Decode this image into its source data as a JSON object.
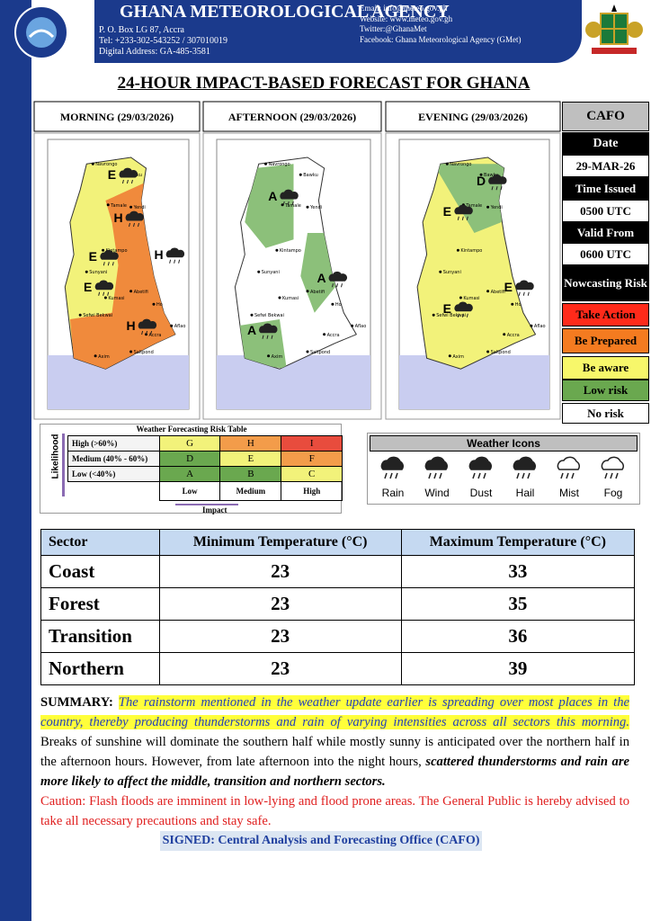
{
  "header": {
    "agency": "GHANA METEOROLOGICAL AGENCY",
    "address": [
      "P. O. Box  LG 87, Accra",
      "Tel: +233-302-543252 / 307010019",
      "Digital Address: GA-485-3581"
    ],
    "contact": [
      "Email: info@meteo.gov.gh",
      "Website: www.meteo.gov.gh",
      "Twitter:@GhanaMet",
      "Facebook: Ghana Meteorological Agency (GMet)"
    ]
  },
  "title": "24-HOUR IMPACT-BASED FORECAST FOR GHANA",
  "map_places": [
    "Bawku",
    "Navrongo",
    "Tamale",
    "Yendi",
    "Kintampo",
    "Sunyani",
    "Kumasi",
    "Abetifi",
    "Ho",
    "Accra",
    "Saltpond",
    "Axim",
    "Sefwi Bekwai",
    "Aflao"
  ],
  "panels": [
    {
      "heading": "MORNING (29/03/2026)",
      "zones": [
        "E",
        "H",
        "H",
        "E",
        "E",
        "H"
      ]
    },
    {
      "heading": "AFTERNOON (29/03/2026)",
      "zones": [
        "A",
        "A",
        "A"
      ]
    },
    {
      "heading": "EVENING (29/03/2026)",
      "zones": [
        "D",
        "E",
        "E",
        "E"
      ]
    }
  ],
  "cafo": {
    "title": "CAFO",
    "rows": [
      "Date",
      "29-MAR-26",
      "Time Issued",
      "0500 UTC",
      "Valid From",
      "0600 UTC",
      "Nowcasting Risk"
    ],
    "legend": [
      "Take Action",
      "Be Prepared",
      "Be aware",
      "Low risk",
      "No risk"
    ]
  },
  "risk_table": {
    "title": "Weather Forecasting Risk Table",
    "y_label": "Likelihood",
    "rows": [
      {
        "label": "High (>60%)",
        "cells": [
          "G",
          "H",
          "I"
        ]
      },
      {
        "label": "Medium (40% - 60%)",
        "cells": [
          "D",
          "E",
          "F"
        ]
      },
      {
        "label": "Low (<40%)",
        "cells": [
          "A",
          "B",
          "C"
        ]
      }
    ],
    "columns": [
      "Low",
      "Medium",
      "High"
    ],
    "x_label": "Impact"
  },
  "icons": {
    "title": "Weather Icons",
    "items": [
      "Rain",
      "Wind",
      "Dust",
      "Hail",
      "Mist",
      "Fog"
    ]
  },
  "temperatures": {
    "header": [
      "Sector",
      "Minimum Temperature (°C)",
      "Maximum Temperature (°C)"
    ],
    "rows": [
      [
        "Coast",
        23,
        33
      ],
      [
        "Forest",
        23,
        35
      ],
      [
        "Transition",
        23,
        36
      ],
      [
        "Northern",
        23,
        39
      ]
    ]
  },
  "summary": {
    "label": "SUMMARY:",
    "highlight": "The rainstorm mentioned in the weather update earlier is spreading over most places in the country, thereby producing thunderstorms and rain of varying intensities across all sectors this morning.",
    "text": "Breaks of sunshine will dominate the southern half while mostly sunny is anticipated over the northern half in the afternoon hours. However, from late afternoon into the night hours,",
    "emphasis": "scattered thunderstorms and rain are more likely to affect the middle, transition and northern sectors.",
    "caution": "Caution: Flash floods are imminent in low-lying and flood prone areas. The General Public is hereby advised to take all necessary precautions and stay safe.",
    "signed": "SIGNED: Central Analysis and Forecasting Office (CAFO)"
  }
}
